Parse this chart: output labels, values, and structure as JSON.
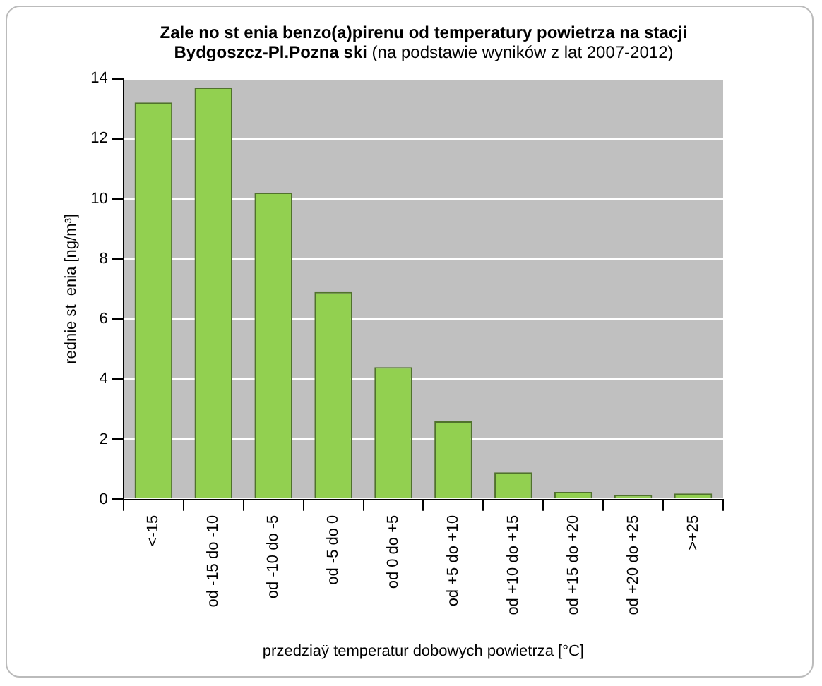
{
  "chart_data": {
    "type": "bar",
    "title": "Zale no  st  enia benzo(a)pirenu od temperatury powietrza na stacji Bydgoszcz-Pl.Pozna  ski",
    "subtitle": "(na podstawie wyników z lat 2007-2012)",
    "xlabel": "przedziaÿ temperatur dobowych powietrza [°C]",
    "ylabel": "rednie st  enia [ng/m³]",
    "categories": [
      "<-15",
      "od -15 do -10",
      "od -10 do -5",
      "od -5 do 0",
      "od 0 do +5",
      "od +5 do +10",
      "od +10 do +15",
      "od +15 do +20",
      "od +20 do +25",
      ">+25"
    ],
    "values": [
      13.2,
      13.7,
      10.2,
      6.9,
      4.4,
      2.6,
      0.9,
      0.25,
      0.15,
      0.2
    ],
    "color": "#92d050",
    "ylim": [
      0,
      14
    ],
    "yticks": [
      0,
      2,
      4,
      6,
      8,
      10,
      12,
      14
    ],
    "grid": "y"
  }
}
